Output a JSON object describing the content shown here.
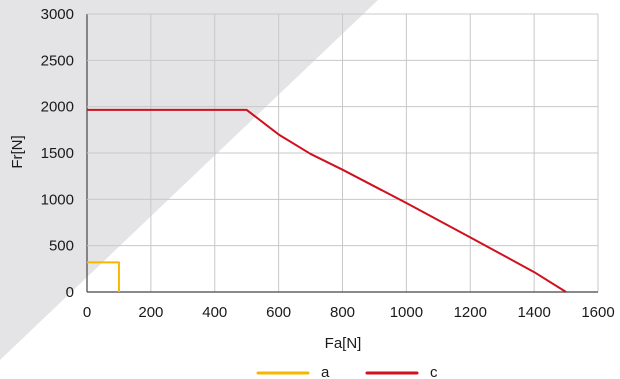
{
  "chart_data": {
    "type": "line",
    "xlabel": "Fa[N]",
    "ylabel": "Fr[N]",
    "xlim": [
      0,
      1600
    ],
    "ylim": [
      0,
      3000
    ],
    "xticks": [
      0,
      200,
      400,
      600,
      800,
      1000,
      1200,
      1400,
      1600
    ],
    "yticks": [
      0,
      500,
      1000,
      1500,
      2000,
      2500,
      3000
    ],
    "grid": true,
    "legend_position": "bottom-center",
    "series": [
      {
        "name": "a",
        "color": "#f5b800",
        "x": [
          0,
          100,
          100
        ],
        "y": [
          320,
          320,
          0
        ]
      },
      {
        "name": "c",
        "color": "#d0101e",
        "x": [
          0,
          500,
          600,
          700,
          800,
          1000,
          1200,
          1400,
          1500
        ],
        "y": [
          1965,
          1965,
          1700,
          1490,
          1320,
          960,
          590,
          215,
          0
        ]
      }
    ]
  }
}
